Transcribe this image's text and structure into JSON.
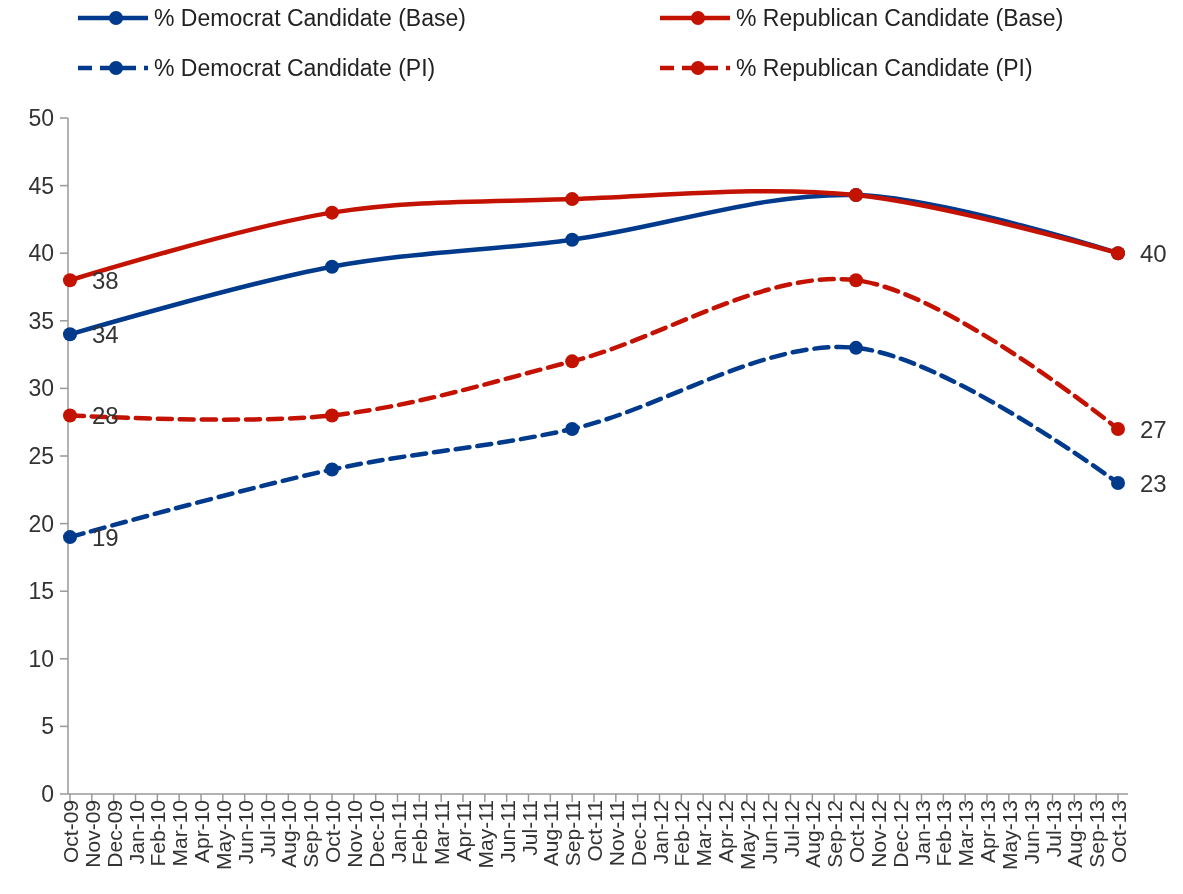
{
  "chart_data": {
    "type": "line",
    "categories": [
      "Oct-09",
      "Nov-09",
      "Dec-09",
      "Jan-10",
      "Feb-10",
      "Mar-10",
      "Apr-10",
      "May-10",
      "Jun-10",
      "Jul-10",
      "Aug-10",
      "Sep-10",
      "Oct-10",
      "Nov-10",
      "Dec-10",
      "Jan-11",
      "Feb-11",
      "Mar-11",
      "Apr-11",
      "May-11",
      "Jun-11",
      "Jul-11",
      "Aug-11",
      "Sep-11",
      "Oct-11",
      "Nov-11",
      "Dec-11",
      "Jan-12",
      "Feb-12",
      "Mar-12",
      "Apr-12",
      "May-12",
      "Jun-12",
      "Jul-12",
      "Aug-12",
      "Sep-12",
      "Oct-12",
      "Nov-12",
      "Dec-12",
      "Jan-13",
      "Feb-13",
      "Mar-13",
      "Apr-13",
      "May-13",
      "Jun-13",
      "Jul-13",
      "Aug-13",
      "Sep-13",
      "Oct-13"
    ],
    "series": [
      {
        "name": "% Democrat Candidate (Base)",
        "color": "#003a8c",
        "line_style": "solid",
        "values": [
          34,
          null,
          null,
          null,
          null,
          null,
          null,
          null,
          null,
          null,
          null,
          null,
          39,
          null,
          null,
          null,
          null,
          null,
          null,
          null,
          null,
          null,
          null,
          41,
          null,
          null,
          null,
          null,
          null,
          null,
          null,
          null,
          null,
          null,
          null,
          null,
          44.3,
          null,
          null,
          null,
          null,
          null,
          null,
          null,
          null,
          null,
          null,
          null,
          40
        ],
        "value_labels": [
          "34",
          null,
          null,
          null,
          null,
          null,
          null,
          null,
          null,
          null,
          null,
          null,
          null,
          null,
          null,
          null,
          null,
          null,
          null,
          null,
          null,
          null,
          null,
          null,
          null,
          null,
          null,
          null,
          null,
          null,
          null,
          null,
          null,
          null,
          null,
          null,
          null,
          null,
          null,
          null,
          null,
          null,
          null,
          null,
          null,
          null,
          null,
          null,
          null
        ]
      },
      {
        "name": "% Republican Candidate (Base)",
        "color": "#c41200",
        "line_style": "solid",
        "values": [
          38,
          null,
          null,
          null,
          null,
          null,
          null,
          null,
          null,
          null,
          null,
          null,
          43,
          null,
          null,
          null,
          null,
          null,
          null,
          null,
          null,
          null,
          null,
          44,
          null,
          null,
          null,
          null,
          null,
          null,
          null,
          null,
          null,
          null,
          null,
          null,
          44.3,
          null,
          null,
          null,
          null,
          null,
          null,
          null,
          null,
          null,
          null,
          null,
          40
        ],
        "value_labels": [
          "38",
          null,
          null,
          null,
          null,
          null,
          null,
          null,
          null,
          null,
          null,
          null,
          null,
          null,
          null,
          null,
          null,
          null,
          null,
          null,
          null,
          null,
          null,
          null,
          null,
          null,
          null,
          null,
          null,
          null,
          null,
          null,
          null,
          null,
          null,
          null,
          null,
          null,
          null,
          null,
          null,
          null,
          null,
          null,
          null,
          null,
          null,
          null,
          "40"
        ]
      },
      {
        "name": "% Democrat Candidate (PI)",
        "color": "#003a8c",
        "line_style": "dashed",
        "values": [
          19,
          null,
          null,
          null,
          null,
          null,
          null,
          null,
          null,
          null,
          null,
          null,
          24,
          null,
          null,
          null,
          null,
          null,
          null,
          null,
          null,
          null,
          null,
          27,
          null,
          null,
          null,
          null,
          null,
          null,
          null,
          null,
          null,
          null,
          null,
          null,
          33,
          null,
          null,
          null,
          null,
          null,
          null,
          null,
          null,
          null,
          null,
          null,
          23
        ],
        "value_labels": [
          "19",
          null,
          null,
          null,
          null,
          null,
          null,
          null,
          null,
          null,
          null,
          null,
          null,
          null,
          null,
          null,
          null,
          null,
          null,
          null,
          null,
          null,
          null,
          null,
          null,
          null,
          null,
          null,
          null,
          null,
          null,
          null,
          null,
          null,
          null,
          null,
          null,
          null,
          null,
          null,
          null,
          null,
          null,
          null,
          null,
          null,
          null,
          null,
          "23"
        ]
      },
      {
        "name": "% Republican Candidate (PI)",
        "color": "#c41200",
        "line_style": "dashed",
        "values": [
          28,
          null,
          null,
          null,
          null,
          null,
          null,
          null,
          null,
          null,
          null,
          null,
          28,
          null,
          null,
          null,
          null,
          null,
          null,
          null,
          null,
          null,
          null,
          32,
          null,
          null,
          null,
          null,
          null,
          null,
          null,
          null,
          null,
          null,
          null,
          null,
          38,
          null,
          null,
          null,
          null,
          null,
          null,
          null,
          null,
          null,
          null,
          null,
          27
        ],
        "value_labels": [
          "28",
          null,
          null,
          null,
          null,
          null,
          null,
          null,
          null,
          null,
          null,
          null,
          null,
          null,
          null,
          null,
          null,
          null,
          null,
          null,
          null,
          null,
          null,
          null,
          null,
          null,
          null,
          null,
          null,
          null,
          null,
          null,
          null,
          null,
          null,
          null,
          null,
          null,
          null,
          null,
          null,
          null,
          null,
          null,
          null,
          null,
          null,
          null,
          "27"
        ]
      }
    ],
    "ylim": [
      0,
      50
    ],
    "yticks": [
      0,
      5,
      10,
      15,
      20,
      25,
      30,
      35,
      40,
      45,
      50
    ],
    "legend": "top",
    "marker": "circle"
  }
}
